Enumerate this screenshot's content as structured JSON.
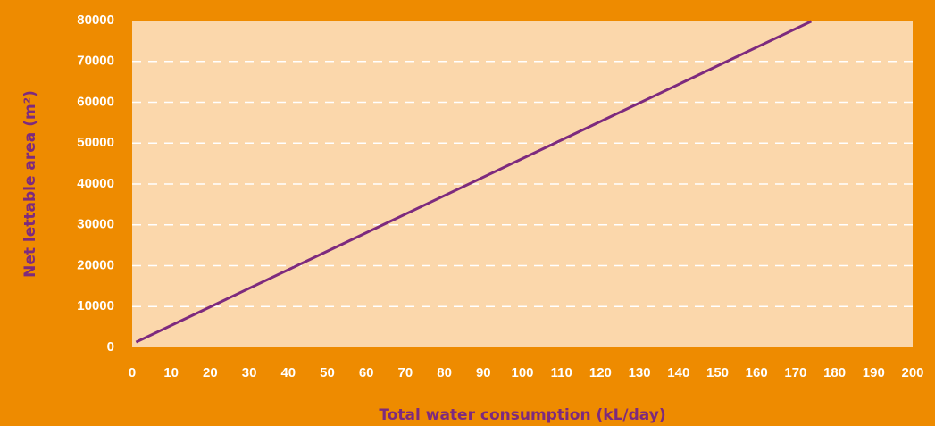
{
  "chart_data": {
    "type": "line",
    "xlabel": "Total water consumption (kL/day)",
    "ylabel": "Net lettable area (m²)",
    "x": [
      1,
      174
    ],
    "series": [
      {
        "name": "Net lettable area",
        "color": "#7d2a7e",
        "values": [
          1300,
          79800
        ]
      }
    ],
    "xlim": [
      0,
      200
    ],
    "xticks": [
      0,
      10,
      20,
      30,
      40,
      50,
      60,
      70,
      80,
      90,
      100,
      110,
      120,
      130,
      140,
      150,
      160,
      170,
      180,
      190,
      200
    ],
    "ylim": [
      0,
      80000
    ],
    "yticks": [
      0,
      10000,
      20000,
      30000,
      40000,
      50000,
      60000,
      70000,
      80000
    ],
    "grid": true
  }
}
